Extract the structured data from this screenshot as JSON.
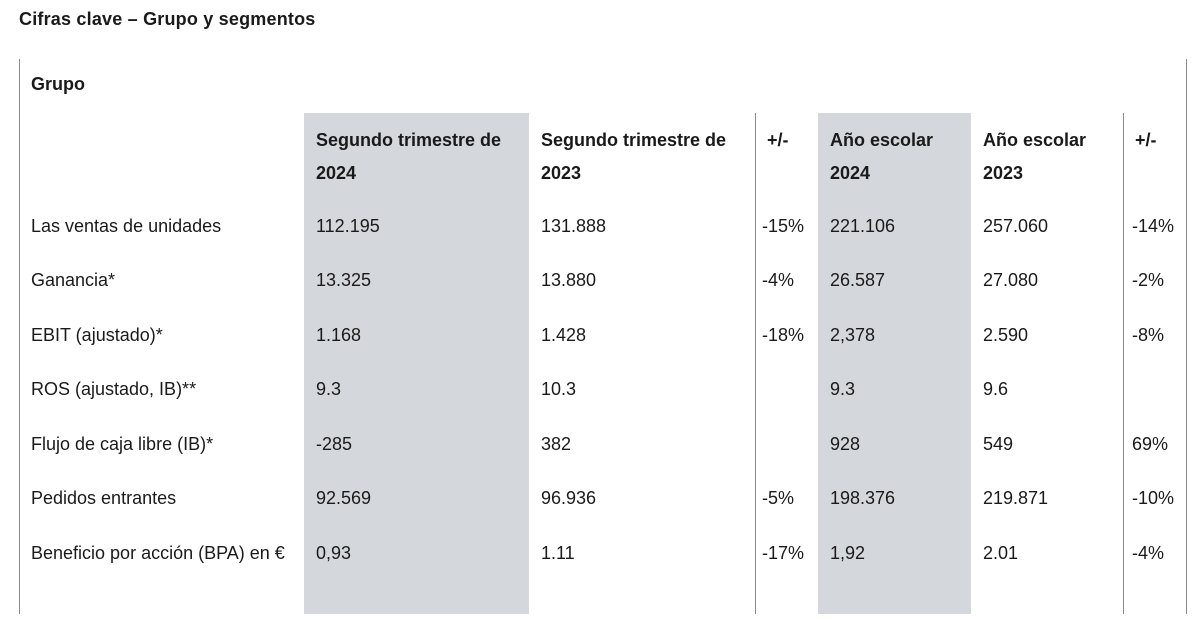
{
  "page_title": "Cifras clave – Grupo y segmentos",
  "section_title": "Grupo",
  "columns": [
    "Segundo trimestre de 2024",
    "Segundo trimestre de 2023",
    "+/-",
    "Año escolar 2024",
    "Año escolar 2023",
    "+/-"
  ],
  "rows": [
    {
      "label": "Las ventas de unidades",
      "values": [
        "112.195",
        "131.888",
        "-15%",
        "221.106",
        "257.060",
        "-14%"
      ]
    },
    {
      "label": "Ganancia*",
      "values": [
        "13.325",
        "13.880",
        "-4%",
        "26.587",
        "27.080",
        "-2%"
      ]
    },
    {
      "label": "EBIT (ajustado)*",
      "values": [
        "1.168",
        "1.428",
        "-18%",
        "2,378",
        "2.590",
        "-8%"
      ]
    },
    {
      "label": "ROS (ajustado, IB)**",
      "values": [
        "9.3",
        "10.3",
        "",
        "9.3",
        "9.6",
        ""
      ]
    },
    {
      "label": "Flujo de caja libre (IB)*",
      "values": [
        "-285",
        "382",
        "",
        "928",
        "549",
        "69%"
      ]
    },
    {
      "label": "Pedidos entrantes",
      "values": [
        "92.569",
        "96.936",
        "-5%",
        "198.376",
        "219.871",
        "-10%"
      ]
    },
    {
      "label": "Beneficio por acción (BPA) en €",
      "values": [
        "0,93",
        "1.11",
        "-17%",
        "1,92",
        "2.01",
        "-4%"
      ]
    }
  ],
  "colors": {
    "highlight_column": "#d4d7db",
    "rule": "#8a8a8a",
    "text": "#1a1a1a"
  }
}
